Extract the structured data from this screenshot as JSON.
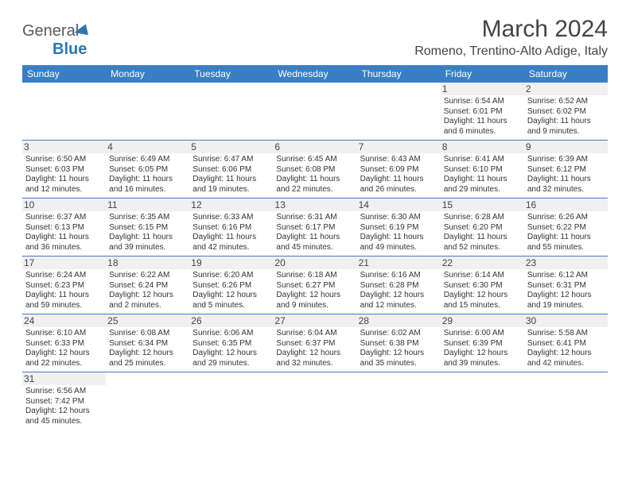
{
  "brand": {
    "part1": "General",
    "part2": "Blue"
  },
  "title": "March 2024",
  "location": "Romeno, Trentino-Alto Adige, Italy",
  "colors": {
    "header_bg": "#3a7fc4",
    "header_text": "#ffffff",
    "row_divider": "#3a7fc4",
    "daynum_bg": "#f0f0f0",
    "text": "#333333",
    "brand_gray": "#5a5a5a",
    "brand_blue": "#2e75b6",
    "page_bg": "#ffffff"
  },
  "fonts": {
    "family": "Arial",
    "title_size_pt": 22,
    "location_size_pt": 12,
    "header_size_pt": 9,
    "cell_size_pt": 7.5
  },
  "weekdays": [
    "Sunday",
    "Monday",
    "Tuesday",
    "Wednesday",
    "Thursday",
    "Friday",
    "Saturday"
  ],
  "weeks": [
    [
      null,
      null,
      null,
      null,
      null,
      {
        "day": "1",
        "sunrise": "Sunrise: 6:54 AM",
        "sunset": "Sunset: 6:01 PM",
        "daylight": "Daylight: 11 hours and 6 minutes."
      },
      {
        "day": "2",
        "sunrise": "Sunrise: 6:52 AM",
        "sunset": "Sunset: 6:02 PM",
        "daylight": "Daylight: 11 hours and 9 minutes."
      }
    ],
    [
      {
        "day": "3",
        "sunrise": "Sunrise: 6:50 AM",
        "sunset": "Sunset: 6:03 PM",
        "daylight": "Daylight: 11 hours and 12 minutes."
      },
      {
        "day": "4",
        "sunrise": "Sunrise: 6:49 AM",
        "sunset": "Sunset: 6:05 PM",
        "daylight": "Daylight: 11 hours and 16 minutes."
      },
      {
        "day": "5",
        "sunrise": "Sunrise: 6:47 AM",
        "sunset": "Sunset: 6:06 PM",
        "daylight": "Daylight: 11 hours and 19 minutes."
      },
      {
        "day": "6",
        "sunrise": "Sunrise: 6:45 AM",
        "sunset": "Sunset: 6:08 PM",
        "daylight": "Daylight: 11 hours and 22 minutes."
      },
      {
        "day": "7",
        "sunrise": "Sunrise: 6:43 AM",
        "sunset": "Sunset: 6:09 PM",
        "daylight": "Daylight: 11 hours and 26 minutes."
      },
      {
        "day": "8",
        "sunrise": "Sunrise: 6:41 AM",
        "sunset": "Sunset: 6:10 PM",
        "daylight": "Daylight: 11 hours and 29 minutes."
      },
      {
        "day": "9",
        "sunrise": "Sunrise: 6:39 AM",
        "sunset": "Sunset: 6:12 PM",
        "daylight": "Daylight: 11 hours and 32 minutes."
      }
    ],
    [
      {
        "day": "10",
        "sunrise": "Sunrise: 6:37 AM",
        "sunset": "Sunset: 6:13 PM",
        "daylight": "Daylight: 11 hours and 36 minutes."
      },
      {
        "day": "11",
        "sunrise": "Sunrise: 6:35 AM",
        "sunset": "Sunset: 6:15 PM",
        "daylight": "Daylight: 11 hours and 39 minutes."
      },
      {
        "day": "12",
        "sunrise": "Sunrise: 6:33 AM",
        "sunset": "Sunset: 6:16 PM",
        "daylight": "Daylight: 11 hours and 42 minutes."
      },
      {
        "day": "13",
        "sunrise": "Sunrise: 6:31 AM",
        "sunset": "Sunset: 6:17 PM",
        "daylight": "Daylight: 11 hours and 45 minutes."
      },
      {
        "day": "14",
        "sunrise": "Sunrise: 6:30 AM",
        "sunset": "Sunset: 6:19 PM",
        "daylight": "Daylight: 11 hours and 49 minutes."
      },
      {
        "day": "15",
        "sunrise": "Sunrise: 6:28 AM",
        "sunset": "Sunset: 6:20 PM",
        "daylight": "Daylight: 11 hours and 52 minutes."
      },
      {
        "day": "16",
        "sunrise": "Sunrise: 6:26 AM",
        "sunset": "Sunset: 6:22 PM",
        "daylight": "Daylight: 11 hours and 55 minutes."
      }
    ],
    [
      {
        "day": "17",
        "sunrise": "Sunrise: 6:24 AM",
        "sunset": "Sunset: 6:23 PM",
        "daylight": "Daylight: 11 hours and 59 minutes."
      },
      {
        "day": "18",
        "sunrise": "Sunrise: 6:22 AM",
        "sunset": "Sunset: 6:24 PM",
        "daylight": "Daylight: 12 hours and 2 minutes."
      },
      {
        "day": "19",
        "sunrise": "Sunrise: 6:20 AM",
        "sunset": "Sunset: 6:26 PM",
        "daylight": "Daylight: 12 hours and 5 minutes."
      },
      {
        "day": "20",
        "sunrise": "Sunrise: 6:18 AM",
        "sunset": "Sunset: 6:27 PM",
        "daylight": "Daylight: 12 hours and 9 minutes."
      },
      {
        "day": "21",
        "sunrise": "Sunrise: 6:16 AM",
        "sunset": "Sunset: 6:28 PM",
        "daylight": "Daylight: 12 hours and 12 minutes."
      },
      {
        "day": "22",
        "sunrise": "Sunrise: 6:14 AM",
        "sunset": "Sunset: 6:30 PM",
        "daylight": "Daylight: 12 hours and 15 minutes."
      },
      {
        "day": "23",
        "sunrise": "Sunrise: 6:12 AM",
        "sunset": "Sunset: 6:31 PM",
        "daylight": "Daylight: 12 hours and 19 minutes."
      }
    ],
    [
      {
        "day": "24",
        "sunrise": "Sunrise: 6:10 AM",
        "sunset": "Sunset: 6:33 PM",
        "daylight": "Daylight: 12 hours and 22 minutes."
      },
      {
        "day": "25",
        "sunrise": "Sunrise: 6:08 AM",
        "sunset": "Sunset: 6:34 PM",
        "daylight": "Daylight: 12 hours and 25 minutes."
      },
      {
        "day": "26",
        "sunrise": "Sunrise: 6:06 AM",
        "sunset": "Sunset: 6:35 PM",
        "daylight": "Daylight: 12 hours and 29 minutes."
      },
      {
        "day": "27",
        "sunrise": "Sunrise: 6:04 AM",
        "sunset": "Sunset: 6:37 PM",
        "daylight": "Daylight: 12 hours and 32 minutes."
      },
      {
        "day": "28",
        "sunrise": "Sunrise: 6:02 AM",
        "sunset": "Sunset: 6:38 PM",
        "daylight": "Daylight: 12 hours and 35 minutes."
      },
      {
        "day": "29",
        "sunrise": "Sunrise: 6:00 AM",
        "sunset": "Sunset: 6:39 PM",
        "daylight": "Daylight: 12 hours and 39 minutes."
      },
      {
        "day": "30",
        "sunrise": "Sunrise: 5:58 AM",
        "sunset": "Sunset: 6:41 PM",
        "daylight": "Daylight: 12 hours and 42 minutes."
      }
    ],
    [
      {
        "day": "31",
        "sunrise": "Sunrise: 6:56 AM",
        "sunset": "Sunset: 7:42 PM",
        "daylight": "Daylight: 12 hours and 45 minutes."
      },
      null,
      null,
      null,
      null,
      null,
      null
    ]
  ]
}
